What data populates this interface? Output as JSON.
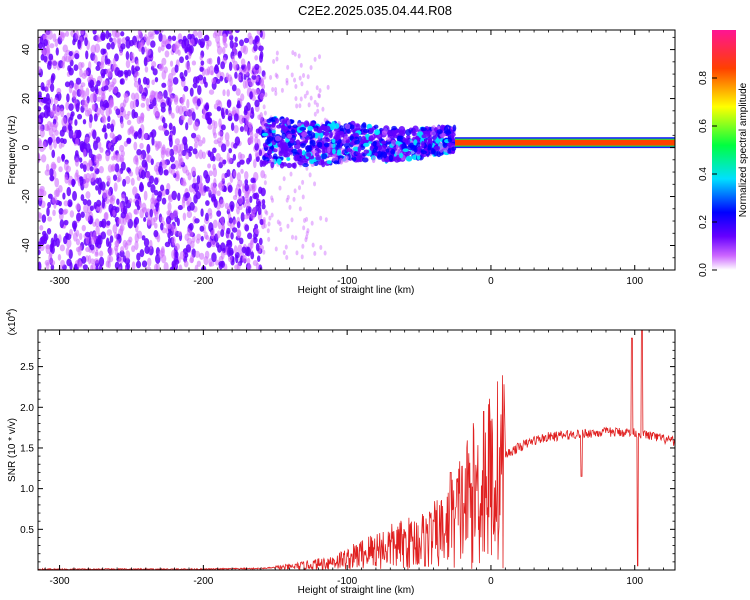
{
  "title": "C2E2.2025.035.04.44.R08",
  "chart_data": [
    {
      "type": "heatmap",
      "xlabel": "Height of straight line (km)",
      "ylabel": "Frequency (Hz)",
      "xlim": [
        -315,
        128
      ],
      "ylim": [
        -50,
        48
      ],
      "x_ticks": [
        -300,
        -200,
        -100,
        0,
        100
      ],
      "y_ticks": [
        -40,
        -20,
        0,
        20,
        40
      ],
      "colorbar": {
        "label": "Normalized spectral amplitude",
        "range": [
          0,
          1
        ],
        "ticks": [
          "0.0",
          "0.2",
          "0.4",
          "0.6",
          "0.8"
        ],
        "colors": [
          "#ffffff",
          "#cc66ff",
          "#6600ff",
          "#0000ff",
          "#00e0ff",
          "#00ff40",
          "#ffff00",
          "#ff4000",
          "#ff1493"
        ]
      },
      "regions": [
        {
          "x_range": [
            -315,
            -158
          ],
          "freq_range": [
            -50,
            48
          ],
          "amplitude": "low, broadband noise"
        },
        {
          "x_range": [
            -158,
            -25
          ],
          "freq_range": [
            -12,
            15
          ],
          "amplitude": "medium, scattered"
        },
        {
          "x_range": [
            -25,
            128
          ],
          "freq_range": [
            1,
            3
          ],
          "amplitude": "high, narrow carrier line"
        }
      ],
      "grid": false
    },
    {
      "type": "line",
      "xlabel": "Height of straight line (km)",
      "ylabel": "SNR (10 * v/v)",
      "multiplier_label": "(x10",
      "multiplier_exponent": "4",
      "xlim": [
        -315,
        128
      ],
      "ylim": [
        0,
        2.95
      ],
      "x_ticks": [
        -300,
        -200,
        -100,
        0,
        100
      ],
      "y_ticks": [
        "0.5",
        "1.0",
        "1.5",
        "2.0",
        "2.5"
      ],
      "series_color": "#e02020",
      "x": [
        -315,
        -200,
        -160,
        -140,
        -120,
        -100,
        -80,
        -60,
        -45,
        -30,
        -20,
        -10,
        0,
        10,
        20,
        30,
        40,
        50,
        60,
        70,
        80,
        90,
        100,
        110,
        128
      ],
      "y": [
        0.01,
        0.01,
        0.02,
        0.04,
        0.08,
        0.15,
        0.28,
        0.35,
        0.42,
        0.55,
        0.85,
        1.05,
        1.25,
        1.42,
        1.52,
        1.6,
        1.64,
        1.66,
        1.68,
        1.69,
        1.7,
        1.7,
        1.7,
        1.66,
        1.58
      ],
      "spikes": [
        {
          "x": -28,
          "y": 1.2
        },
        {
          "x": -5,
          "y": 1.95
        },
        {
          "x": 63,
          "y": 1.15
        },
        {
          "x": 98,
          "y": 2.85
        },
        {
          "x": 102,
          "y": 0.05
        },
        {
          "x": 105,
          "y": 2.95
        }
      ],
      "grid": false
    }
  ]
}
